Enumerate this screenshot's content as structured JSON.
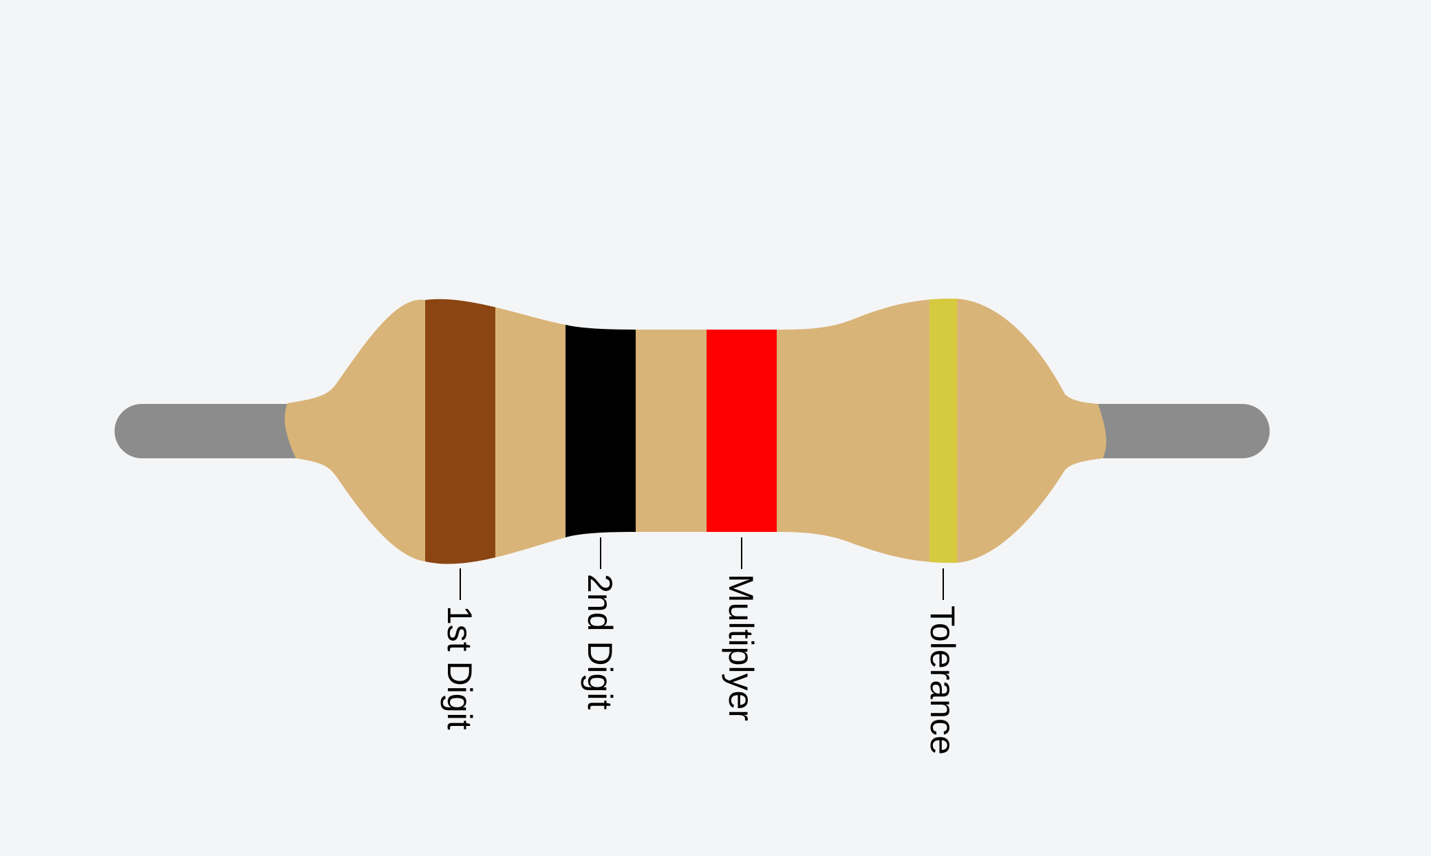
{
  "colors": {
    "background": "#f4f5f7",
    "lead": "#8c8c8c",
    "body": "#d9b478",
    "leader_line": "#000000",
    "label_text": "#000000"
  },
  "bands": [
    {
      "id": "1st-digit",
      "label": "1st Digit",
      "color": "#8b4513"
    },
    {
      "id": "2nd-digit",
      "label": "2nd Digit",
      "color": "#000000"
    },
    {
      "id": "multiplier",
      "label": "Multiplyer",
      "color": "#ff0000"
    },
    {
      "id": "tolerance",
      "label": "Tolerance",
      "color": "#d6cb3e"
    }
  ]
}
